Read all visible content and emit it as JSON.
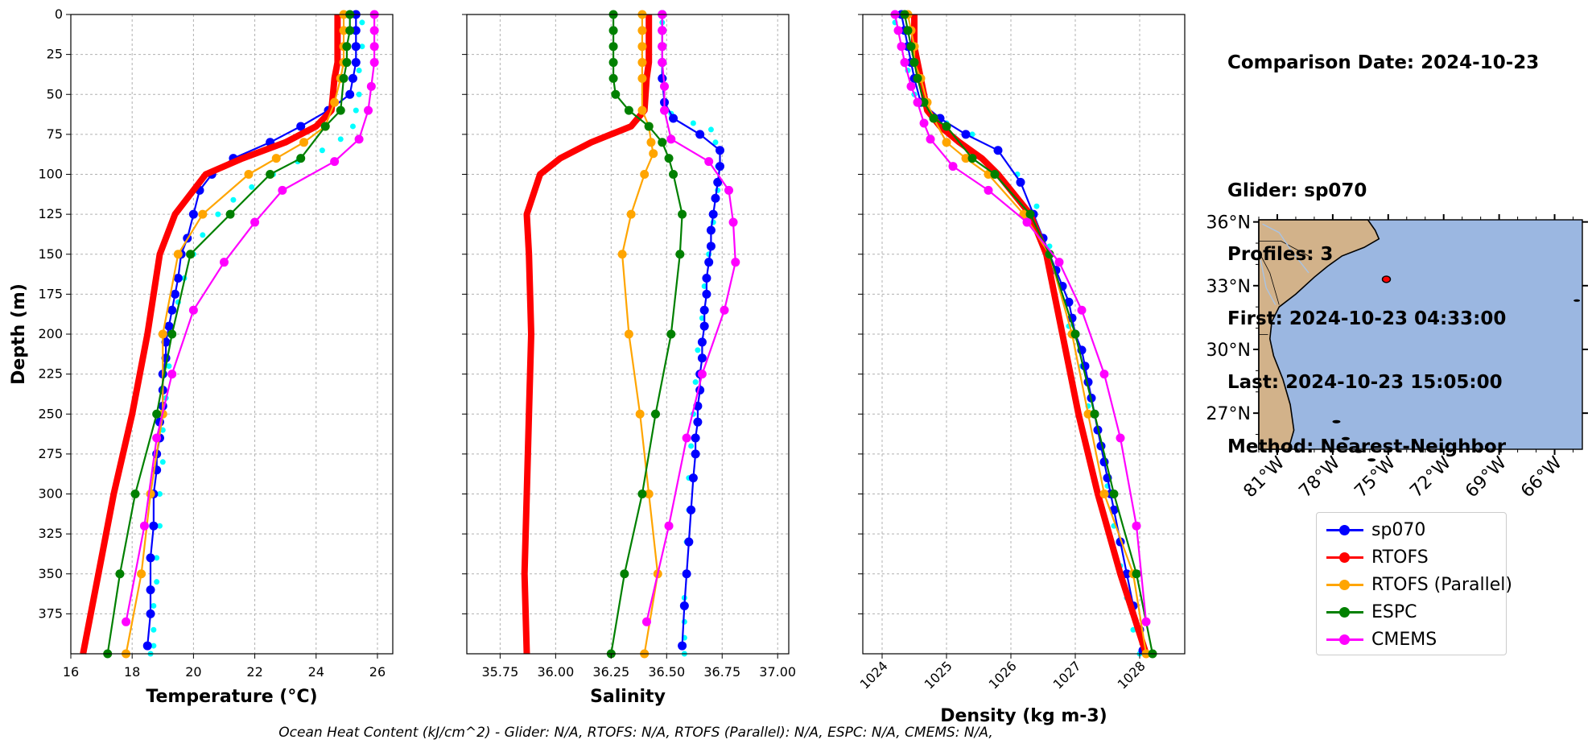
{
  "info": {
    "date_line": "Comparison Date: 2024-10-23",
    "glider_line": "Glider: sp070",
    "profiles_line": "Profiles: 3",
    "first_line": "First: 2024-10-23 04:33:00",
    "last_line": "Last: 2024-10-23 15:05:00",
    "method_line": "Method: Nearest-Neighbor"
  },
  "footer": "Ocean Heat Content (kJ/cm^2) - Glider: N/A,  RTOFS: N/A,  RTOFS (Parallel): N/A,  ESPC: N/A,  CMEMS: N/A,",
  "colors": {
    "sp070": "#0000ff",
    "sp070_raw": "#00ffff",
    "RTOFS": "#ff0000",
    "RTOFS (Parallel)": "#ffa500",
    "ESPC": "#008000",
    "CMEMS": "#ff00ff",
    "map_ocean": "#9bb7e1",
    "map_land": "#d2b28a"
  },
  "legend": [
    {
      "label": "sp070",
      "key": "sp070"
    },
    {
      "label": "RTOFS",
      "key": "RTOFS"
    },
    {
      "label": "RTOFS (Parallel)",
      "key": "RTOFS (Parallel)"
    },
    {
      "label": "ESPC",
      "key": "ESPC"
    },
    {
      "label": "CMEMS",
      "key": "CMEMS"
    }
  ],
  "map": {
    "lat_ticks": [
      "36°N",
      "33°N",
      "30°N",
      "27°N"
    ],
    "lat_values": [
      36,
      33,
      30,
      27
    ],
    "lon_ticks": [
      "81°W",
      "78°W",
      "75°W",
      "72°W",
      "69°W",
      "66°W"
    ],
    "lon_values": [
      -81,
      -78,
      -75,
      -72,
      -69,
      -66
    ],
    "lon_range": [
      -82,
      -64.5
    ],
    "lat_range": [
      25.3,
      36.1
    ],
    "glider_position": {
      "lon": -75.1,
      "lat": 33.3
    }
  },
  "chart_data": [
    {
      "type": "line",
      "xlabel": "Temperature (°C)",
      "ylabel": "Depth (m)",
      "xlim": [
        16,
        26.5
      ],
      "ylim": [
        400,
        0
      ],
      "xticks": [
        16,
        18,
        20,
        22,
        24,
        26
      ],
      "xtick_labels": [
        "16",
        "18",
        "20",
        "22",
        "24",
        "26"
      ],
      "yticks": [
        0,
        25,
        50,
        75,
        100,
        125,
        150,
        175,
        200,
        225,
        250,
        275,
        300,
        325,
        350,
        375
      ],
      "ytick_labels": [
        "0",
        "25",
        "50",
        "75",
        "100",
        "125",
        "150",
        "175",
        "200",
        "225",
        "250",
        "275",
        "300",
        "325",
        "350",
        "375"
      ],
      "grid": true,
      "raw_glider": {
        "name": "sp070 raw",
        "x": [
          25.5,
          25.5,
          25.4,
          25.4,
          25.3,
          25.2,
          24.8,
          24.2,
          23.4,
          22.6,
          21.9,
          21.3,
          20.8,
          20.3,
          20.0,
          19.7,
          19.5,
          19.3,
          19.2,
          19.1,
          19.0,
          19.0,
          18.9,
          18.9,
          18.8,
          18.8,
          18.7,
          18.7,
          18.7,
          18.6
        ],
        "y": [
          5,
          20,
          35,
          50,
          60,
          70,
          78,
          85,
          92,
          100,
          108,
          116,
          125,
          138,
          150,
          165,
          180,
          200,
          220,
          240,
          260,
          280,
          300,
          320,
          340,
          355,
          370,
          385,
          395,
          400
        ]
      },
      "series": [
        {
          "name": "sp070",
          "key": "sp070",
          "x": [
            25.3,
            25.3,
            25.3,
            25.3,
            25.2,
            25.1,
            24.4,
            23.5,
            22.5,
            21.3,
            20.6,
            20.2,
            20.0,
            19.8,
            19.6,
            19.5,
            19.4,
            19.3,
            19.2,
            19.1,
            19.1,
            19.0,
            19.0,
            19.0,
            18.9,
            18.9,
            18.8,
            18.8,
            18.7,
            18.7,
            18.6,
            18.6,
            18.6,
            18.5
          ],
          "y": [
            0,
            10,
            20,
            30,
            40,
            50,
            60,
            70,
            80,
            90,
            100,
            110,
            125,
            140,
            150,
            165,
            175,
            185,
            195,
            205,
            215,
            225,
            235,
            245,
            255,
            265,
            275,
            285,
            300,
            320,
            340,
            360,
            375,
            395
          ]
        },
        {
          "name": "RTOFS",
          "key": "RTOFS",
          "width": 8,
          "x": [
            24.7,
            24.7,
            24.7,
            24.7,
            24.6,
            24.5,
            24.0,
            23.0,
            21.6,
            20.4,
            19.4,
            18.9,
            18.5,
            18.0,
            17.4,
            16.9,
            16.4
          ],
          "y": [
            0,
            10,
            20,
            30,
            40,
            60,
            70,
            80,
            90,
            100,
            125,
            150,
            200,
            250,
            300,
            350,
            400
          ]
        },
        {
          "name": "RTOFS (Parallel)",
          "key": "RTOFS (Parallel)",
          "x": [
            24.9,
            24.9,
            24.9,
            24.9,
            24.8,
            24.6,
            24.3,
            23.6,
            22.7,
            21.8,
            20.3,
            19.5,
            19.0,
            19.0,
            18.6,
            18.3,
            17.8
          ],
          "y": [
            0,
            10,
            20,
            30,
            40,
            55,
            70,
            80,
            90,
            100,
            125,
            150,
            200,
            250,
            300,
            350,
            400
          ]
        },
        {
          "name": "ESPC",
          "key": "ESPC",
          "x": [
            25.1,
            25.1,
            25.0,
            25.0,
            24.9,
            24.8,
            24.3,
            23.5,
            22.5,
            21.2,
            19.9,
            19.3,
            18.8,
            18.1,
            17.6,
            17.2
          ],
          "y": [
            0,
            10,
            20,
            30,
            40,
            60,
            70,
            90,
            100,
            125,
            150,
            200,
            250,
            300,
            350,
            400
          ]
        },
        {
          "name": "CMEMS",
          "key": "CMEMS",
          "x": [
            25.9,
            25.9,
            25.9,
            25.9,
            25.8,
            25.7,
            25.4,
            24.6,
            22.9,
            22.0,
            21.0,
            20.0,
            19.3,
            18.8,
            18.4,
            17.8
          ],
          "y": [
            0,
            10,
            20,
            30,
            45,
            60,
            78,
            92,
            110,
            130,
            155,
            185,
            225,
            265,
            320,
            380
          ]
        }
      ]
    },
    {
      "type": "line",
      "xlabel": "Salinity",
      "ylim": [
        400,
        0
      ],
      "xlim": [
        35.6,
        37.05
      ],
      "xticks": [
        35.75,
        36.0,
        36.25,
        36.5,
        36.75,
        37.0
      ],
      "xtick_labels": [
        "35.75",
        "36.00",
        "36.25",
        "36.50",
        "36.75",
        "37.00"
      ],
      "grid": true,
      "raw_glider": {
        "name": "sp070 raw",
        "x": [
          36.48,
          36.48,
          36.48,
          36.49,
          36.52,
          36.62,
          36.7,
          36.72,
          36.73,
          36.73,
          36.71,
          36.69,
          36.67,
          36.66,
          36.64,
          36.63,
          36.62,
          36.61,
          36.6,
          36.6,
          36.59,
          36.59,
          36.58,
          36.58,
          36.58,
          36.58
        ],
        "y": [
          5,
          20,
          40,
          55,
          62,
          68,
          72,
          80,
          95,
          110,
          130,
          150,
          170,
          190,
          210,
          230,
          250,
          270,
          290,
          310,
          330,
          350,
          365,
          380,
          390,
          400
        ]
      },
      "series": [
        {
          "name": "sp070",
          "key": "sp070",
          "x": [
            36.48,
            36.48,
            36.48,
            36.48,
            36.48,
            36.49,
            36.53,
            36.65,
            36.74,
            36.74,
            36.73,
            36.72,
            36.71,
            36.7,
            36.7,
            36.69,
            36.68,
            36.68,
            36.67,
            36.67,
            36.66,
            36.66,
            36.65,
            36.65,
            36.64,
            36.64,
            36.63,
            36.63,
            36.62,
            36.61,
            36.6,
            36.59,
            36.58,
            36.57
          ],
          "y": [
            0,
            10,
            20,
            30,
            40,
            55,
            65,
            75,
            85,
            95,
            105,
            115,
            125,
            135,
            145,
            155,
            165,
            175,
            185,
            195,
            205,
            215,
            225,
            235,
            245,
            255,
            265,
            275,
            290,
            310,
            330,
            350,
            370,
            395
          ]
        },
        {
          "name": "RTOFS",
          "key": "RTOFS",
          "width": 8,
          "x": [
            36.42,
            36.42,
            36.42,
            36.42,
            36.41,
            36.4,
            36.34,
            36.16,
            36.02,
            35.93,
            35.87,
            35.88,
            35.89,
            35.88,
            35.87,
            35.86,
            35.87
          ],
          "y": [
            0,
            10,
            20,
            30,
            40,
            60,
            70,
            80,
            90,
            100,
            125,
            150,
            200,
            250,
            300,
            350,
            400
          ]
        },
        {
          "name": "RTOFS (Parallel)",
          "key": "RTOFS (Parallel)",
          "x": [
            36.39,
            36.39,
            36.39,
            36.39,
            36.39,
            36.39,
            36.42,
            36.43,
            36.44,
            36.4,
            36.34,
            36.3,
            36.33,
            36.38,
            36.42,
            36.46,
            36.4
          ],
          "y": [
            0,
            10,
            20,
            30,
            40,
            60,
            70,
            80,
            87,
            100,
            125,
            150,
            200,
            250,
            300,
            350,
            400
          ]
        },
        {
          "name": "ESPC",
          "key": "ESPC",
          "x": [
            36.26,
            36.26,
            36.26,
            36.26,
            36.26,
            36.27,
            36.33,
            36.42,
            36.48,
            36.51,
            36.53,
            36.57,
            36.56,
            36.52,
            36.45,
            36.39,
            36.31,
            36.25
          ],
          "y": [
            0,
            10,
            20,
            30,
            40,
            50,
            60,
            70,
            80,
            90,
            100,
            125,
            150,
            200,
            250,
            300,
            350,
            400
          ]
        },
        {
          "name": "CMEMS",
          "key": "CMEMS",
          "x": [
            36.48,
            36.48,
            36.48,
            36.48,
            36.49,
            36.49,
            36.52,
            36.69,
            36.78,
            36.8,
            36.81,
            36.76,
            36.66,
            36.59,
            36.51,
            36.41
          ],
          "y": [
            0,
            10,
            20,
            30,
            45,
            60,
            78,
            92,
            110,
            130,
            155,
            185,
            225,
            265,
            320,
            380
          ]
        }
      ]
    },
    {
      "type": "line",
      "xlabel": "Density (kg m-3)",
      "ylim": [
        400,
        0
      ],
      "xlim": [
        1023.7,
        1028.7
      ],
      "xticks": [
        1024,
        1025,
        1026,
        1027,
        1028
      ],
      "xtick_labels": [
        "1024",
        "1025",
        "1026",
        "1027",
        "1028"
      ],
      "grid": true,
      "raw_glider": {
        "name": "sp070 raw",
        "x": [
          1024.2,
          1024.3,
          1024.4,
          1024.5,
          1024.7,
          1025.0,
          1025.4,
          1025.8,
          1026.1,
          1026.4,
          1026.6,
          1026.8,
          1026.9,
          1027.1,
          1027.2,
          1027.4,
          1027.5,
          1027.6,
          1027.7,
          1027.8,
          1027.9,
          1028.0
        ],
        "y": [
          5,
          20,
          35,
          50,
          60,
          68,
          75,
          85,
          100,
          120,
          145,
          170,
          195,
          220,
          245,
          270,
          295,
          320,
          345,
          365,
          385,
          400
        ]
      },
      "series": [
        {
          "name": "sp070",
          "key": "sp070",
          "x": [
            1024.3,
            1024.35,
            1024.4,
            1024.45,
            1024.5,
            1024.6,
            1024.9,
            1025.3,
            1025.8,
            1026.15,
            1026.35,
            1026.5,
            1026.6,
            1026.7,
            1026.8,
            1026.9,
            1026.95,
            1027.0,
            1027.1,
            1027.15,
            1027.2,
            1027.25,
            1027.3,
            1027.35,
            1027.4,
            1027.45,
            1027.5,
            1027.55,
            1027.6,
            1027.7,
            1027.8,
            1027.9,
            1028.0,
            1028.05
          ],
          "y": [
            0,
            10,
            20,
            30,
            40,
            55,
            65,
            75,
            85,
            105,
            125,
            140,
            150,
            160,
            170,
            180,
            190,
            200,
            210,
            220,
            230,
            240,
            250,
            260,
            270,
            280,
            290,
            300,
            310,
            330,
            350,
            370,
            385,
            398
          ]
        },
        {
          "name": "RTOFS",
          "key": "RTOFS",
          "width": 8,
          "x": [
            1024.5,
            1024.5,
            1024.5,
            1024.55,
            1024.6,
            1024.7,
            1024.9,
            1025.2,
            1025.55,
            1025.8,
            1026.3,
            1026.55,
            1026.8,
            1027.05,
            1027.35,
            1027.7,
            1028.1
          ],
          "y": [
            0,
            10,
            20,
            30,
            40,
            60,
            70,
            80,
            90,
            100,
            125,
            150,
            200,
            250,
            300,
            350,
            400
          ]
        },
        {
          "name": "RTOFS (Parallel)",
          "key": "RTOFS (Parallel)",
          "x": [
            1024.4,
            1024.45,
            1024.5,
            1024.5,
            1024.6,
            1024.7,
            1024.8,
            1025.0,
            1025.3,
            1025.65,
            1026.2,
            1026.6,
            1026.95,
            1027.2,
            1027.45,
            1027.9,
            1028.1
          ],
          "y": [
            0,
            10,
            20,
            30,
            40,
            55,
            65,
            80,
            90,
            100,
            125,
            150,
            200,
            250,
            300,
            350,
            400
          ]
        },
        {
          "name": "ESPC",
          "key": "ESPC",
          "x": [
            1024.35,
            1024.4,
            1024.45,
            1024.5,
            1024.55,
            1024.65,
            1024.8,
            1025.0,
            1025.4,
            1025.75,
            1026.3,
            1026.6,
            1027.0,
            1027.3,
            1027.6,
            1027.95,
            1028.2
          ],
          "y": [
            0,
            10,
            20,
            30,
            40,
            55,
            65,
            70,
            90,
            100,
            125,
            150,
            200,
            250,
            300,
            350,
            400
          ]
        },
        {
          "name": "CMEMS",
          "key": "CMEMS",
          "x": [
            1024.2,
            1024.25,
            1024.3,
            1024.35,
            1024.45,
            1024.55,
            1024.65,
            1024.75,
            1025.1,
            1025.65,
            1026.25,
            1026.75,
            1027.1,
            1027.45,
            1027.7,
            1027.95,
            1028.1
          ],
          "y": [
            0,
            10,
            20,
            30,
            45,
            55,
            68,
            78,
            95,
            110,
            130,
            155,
            185,
            225,
            265,
            320,
            380
          ]
        }
      ]
    }
  ]
}
